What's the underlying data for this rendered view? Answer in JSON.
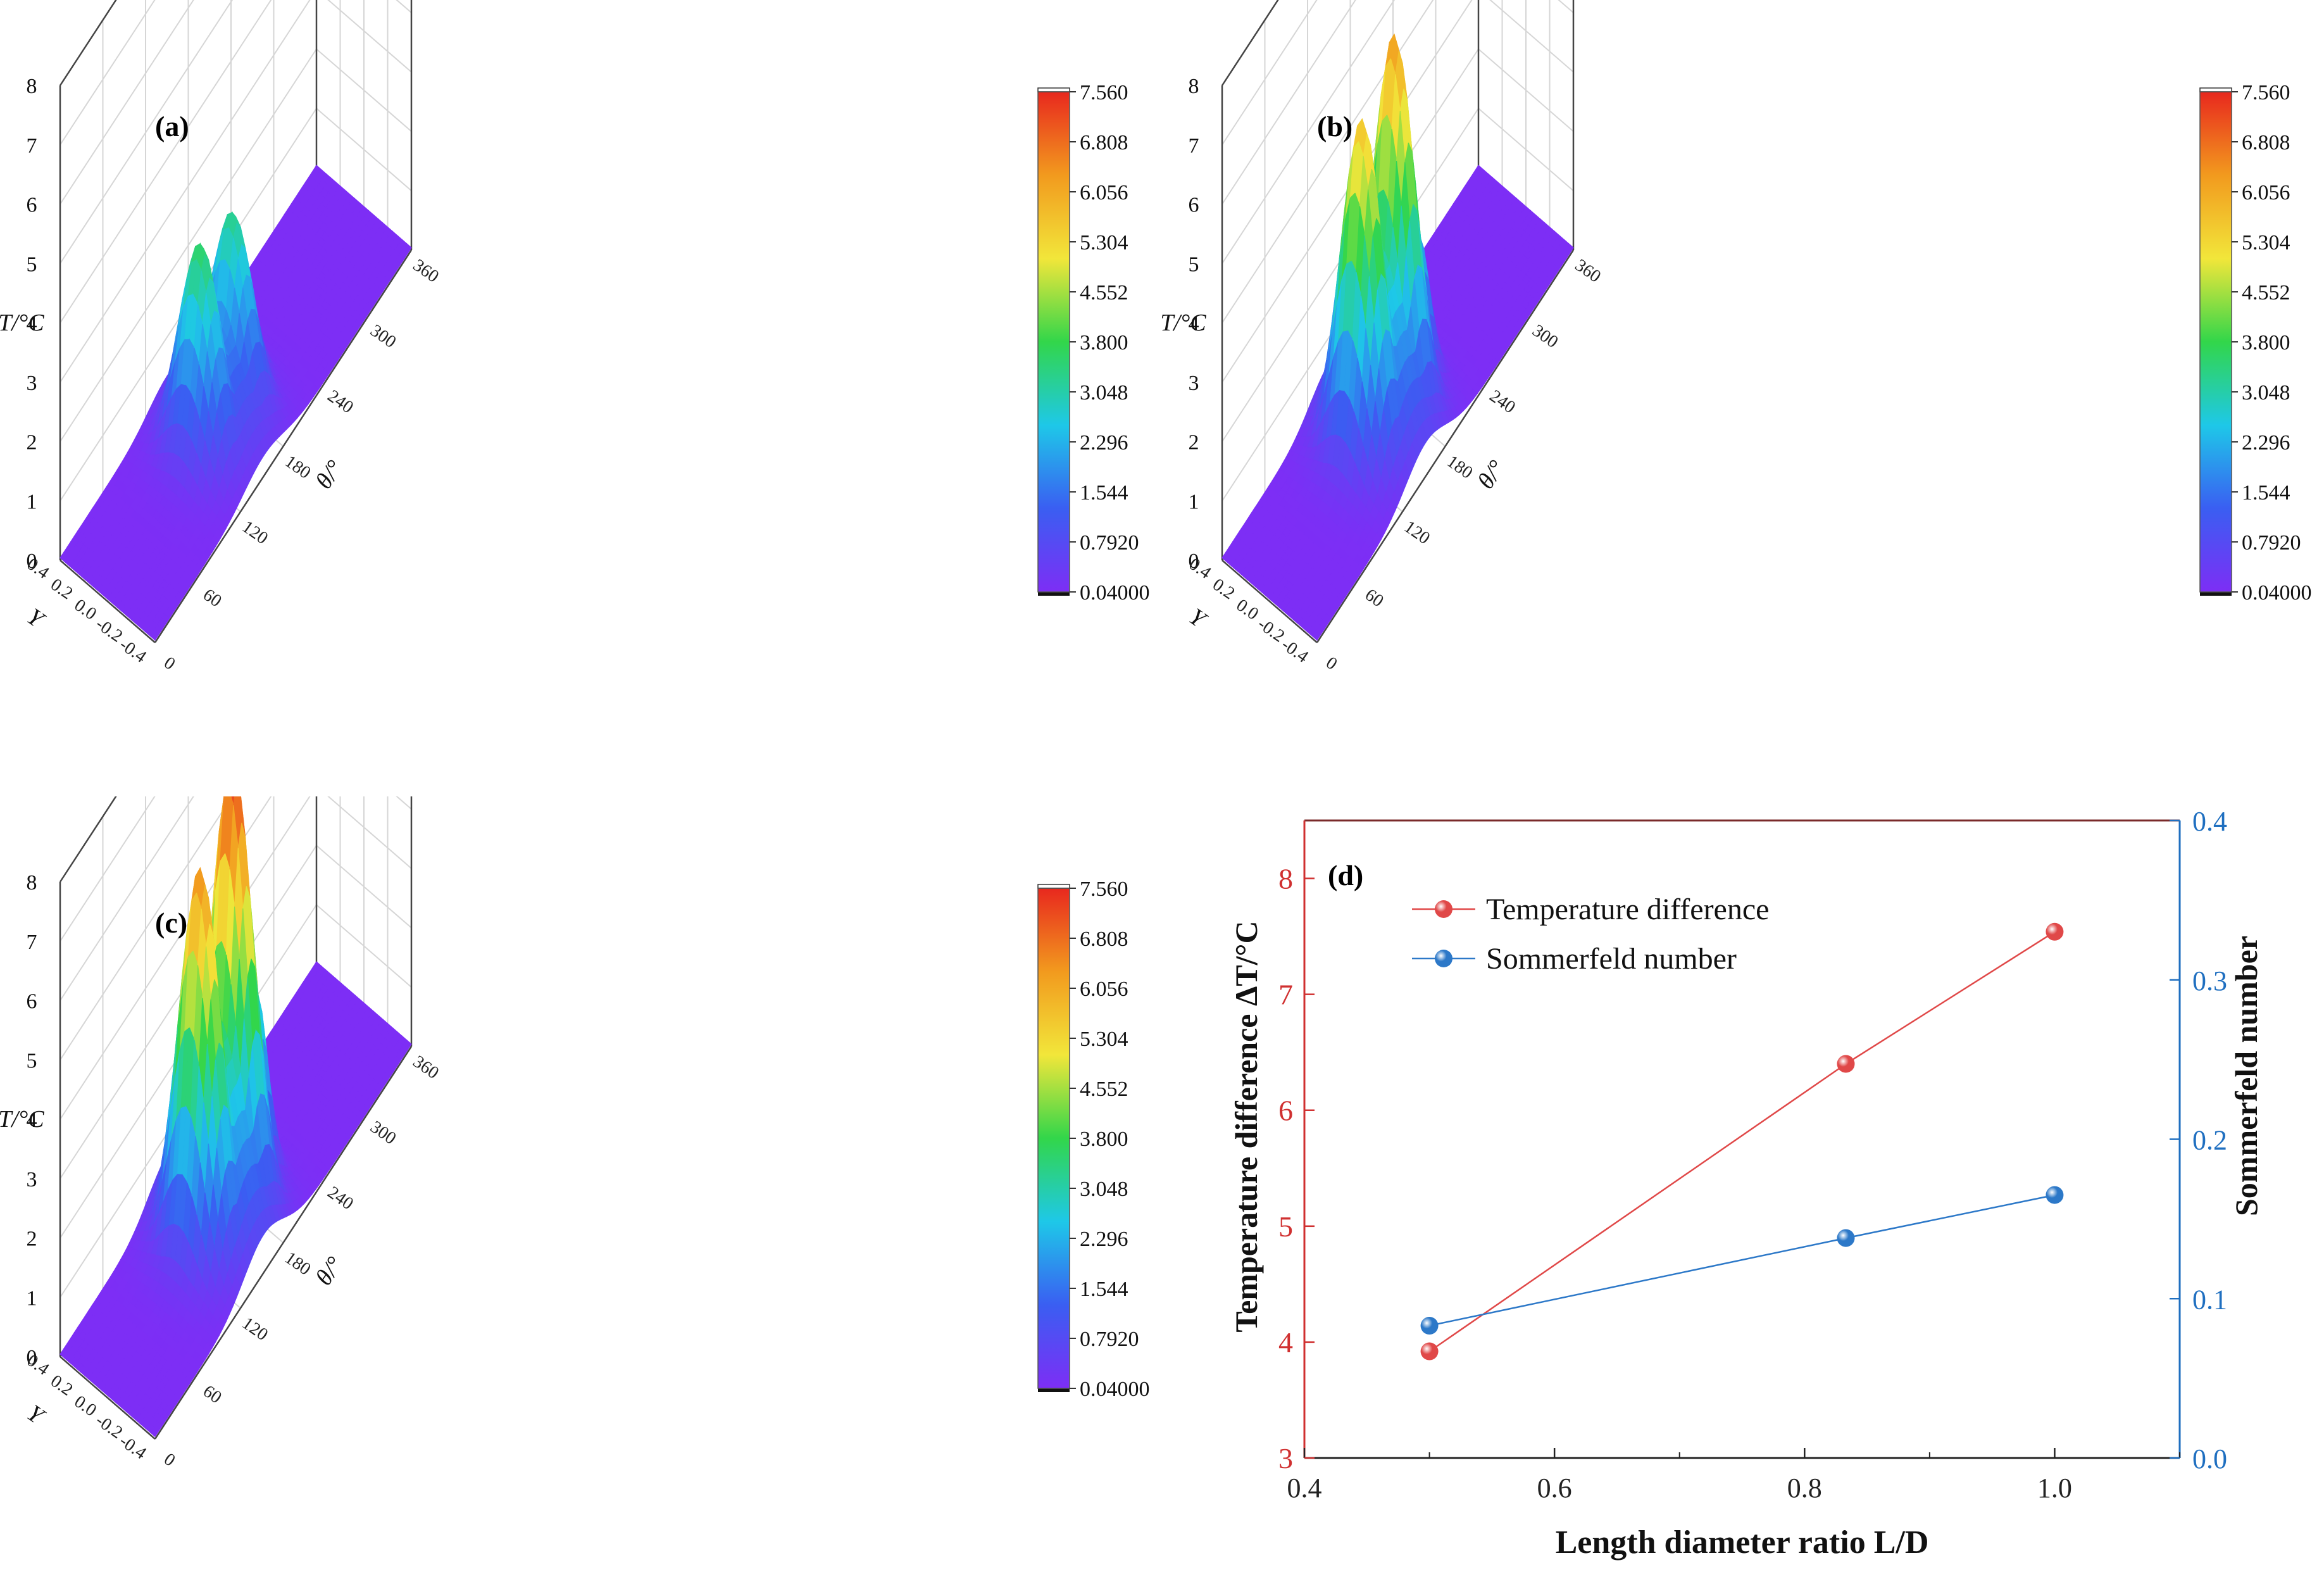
{
  "colors": {
    "colormap": [
      "#7d2ef5",
      "#3a5ef2",
      "#1ec8e8",
      "#32d64a",
      "#f2e63a",
      "#f29a1e",
      "#e8281e"
    ],
    "temperature": "#e04848",
    "sommerfeld": "#2c78c8",
    "axis_red": "#d03030",
    "axis_blue": "#1f6fc0"
  },
  "surface_panels": [
    {
      "label": "(a)",
      "z_label": "ΔT/°C",
      "z_ticks": [
        "0",
        "1",
        "2",
        "3",
        "4",
        "5",
        "6",
        "7",
        "8"
      ],
      "y_label": "Y",
      "y_ticks": [
        "0.4",
        "0.2",
        "0.0",
        "-0.2",
        "-0.4"
      ],
      "x_label": "θ/°",
      "x_ticks": [
        "0",
        "60",
        "120",
        "180",
        "240",
        "300",
        "360"
      ],
      "colorbar_ticks": [
        "7.560",
        "6.808",
        "6.056",
        "5.304",
        "4.552",
        "3.800",
        "3.048",
        "2.296",
        "1.544",
        "0.7920",
        "0.04000"
      ],
      "peaks": [
        {
          "theta": 130,
          "height": 3.6
        },
        {
          "theta": 175,
          "height": 3.3
        },
        {
          "theta": 200,
          "height": 1.1
        }
      ]
    },
    {
      "label": "(b)",
      "z_label": "ΔT/°C",
      "z_ticks": [
        "0",
        "1",
        "2",
        "3",
        "4",
        "5",
        "6",
        "7",
        "8"
      ],
      "y_label": "Y",
      "y_ticks": [
        "0.4",
        "0.2",
        "0.0",
        "-0.2",
        "-0.4"
      ],
      "x_label": "θ/°",
      "x_ticks": [
        "0",
        "60",
        "120",
        "180",
        "240",
        "300",
        "360"
      ],
      "colorbar_ticks": [
        "7.560",
        "6.808",
        "6.056",
        "5.304",
        "4.552",
        "3.800",
        "3.048",
        "2.296",
        "1.544",
        "0.7920",
        "0.04000"
      ],
      "peaks": [
        {
          "theta": 130,
          "height": 5.7
        },
        {
          "theta": 175,
          "height": 6.3
        },
        {
          "theta": 205,
          "height": 2.6
        }
      ]
    },
    {
      "label": "(c)",
      "z_label": "ΔT/°C",
      "z_ticks": [
        "0",
        "1",
        "2",
        "3",
        "4",
        "5",
        "6",
        "7",
        "8"
      ],
      "y_label": "Y",
      "y_ticks": [
        "0.4",
        "0.2",
        "0.0",
        "-0.2",
        "-0.4"
      ],
      "x_label": "θ/°",
      "x_ticks": [
        "0",
        "60",
        "120",
        "180",
        "240",
        "300",
        "360"
      ],
      "colorbar_ticks": [
        "7.560",
        "6.808",
        "6.056",
        "5.304",
        "4.552",
        "3.800",
        "3.048",
        "2.296",
        "1.544",
        "0.7920",
        "0.04000"
      ],
      "peaks": [
        {
          "theta": 130,
          "height": 6.5
        },
        {
          "theta": 175,
          "height": 7.5
        },
        {
          "theta": 205,
          "height": 3.3
        }
      ]
    }
  ],
  "chart_data": [
    {
      "type": "line",
      "label": "(d)",
      "title": "",
      "xlabel": "Length diameter ratio L/D",
      "ylabel_left": "Temperature difference ΔT/°C",
      "ylabel_right": "Sommerfeld number",
      "xlim": [
        0.4,
        1.1
      ],
      "ylim_left": [
        3,
        8.5
      ],
      "ylim_right": [
        0.0,
        0.4
      ],
      "x_ticks": [
        "0.4",
        "0.6",
        "0.8",
        "1.0"
      ],
      "y_left_ticks": [
        "3",
        "4",
        "5",
        "6",
        "7",
        "8"
      ],
      "y_right_ticks": [
        "0.0",
        "0.1",
        "0.2",
        "0.3",
        "0.4"
      ],
      "legend_position": "top-left",
      "x": [
        0.5,
        0.833,
        1.0
      ],
      "series": [
        {
          "name": "Temperature difference",
          "axis": "left",
          "values": [
            3.92,
            6.4,
            7.54
          ]
        },
        {
          "name": "Sommerfeld number",
          "axis": "right",
          "values": [
            0.083,
            0.138,
            0.165
          ]
        }
      ]
    }
  ]
}
